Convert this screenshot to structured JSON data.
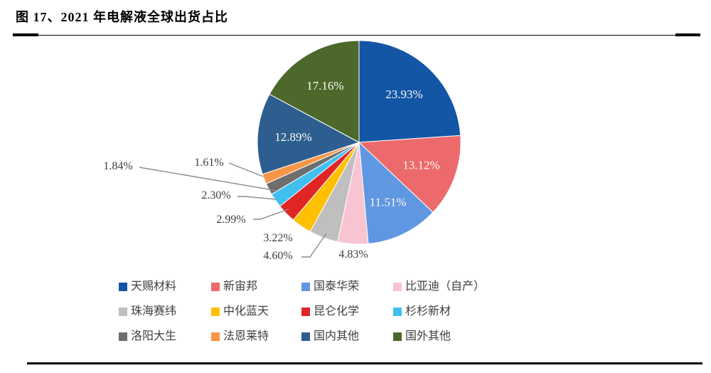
{
  "title": "图 17、2021 年电解液全球出货占比",
  "chart_data": {
    "type": "pie",
    "title": "2021 年电解液全球出货占比",
    "categories": [
      "天赐材料",
      "新宙邦",
      "国泰华荣",
      "比亚迪（自产）",
      "珠海赛纬",
      "中化蓝天",
      "昆仑化学",
      "杉杉新材",
      "洛阳大生",
      "法恩莱特",
      "国内其他",
      "国外其他"
    ],
    "values": [
      23.93,
      13.12,
      11.51,
      4.83,
      4.6,
      3.22,
      2.99,
      2.3,
      1.84,
      1.61,
      12.89,
      17.16
    ],
    "unit": "%",
    "colors": [
      "#1256A5",
      "#ED6A6C",
      "#6097E2",
      "#F9C4D1",
      "#BFBFBF",
      "#FFC000",
      "#E02525",
      "#41C0F0",
      "#6E6E6E",
      "#F79646",
      "#2D5E8F",
      "#4D682B"
    ],
    "start_angle_deg": 0,
    "direction": "clockwise",
    "label_format": "percent-2dp",
    "inside_label_color": "#FBFBF3",
    "outside_label_color": "#3F3F3F",
    "leader_line_color": "#8C8C8C",
    "slice_border_color": "#FFFFFF",
    "legend_position": "bottom",
    "legend_rows": 3,
    "legend_cols": 4
  }
}
